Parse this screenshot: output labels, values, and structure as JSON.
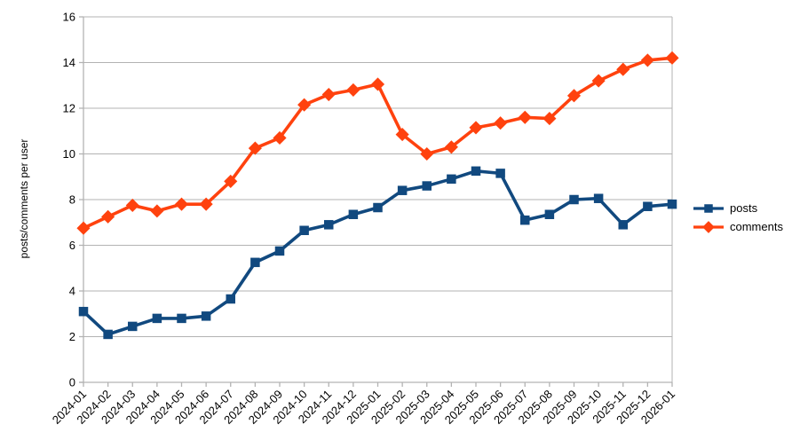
{
  "chart_data": {
    "type": "line",
    "title": "",
    "xlabel": "",
    "ylabel": "posts/comments per user",
    "ylim": [
      0,
      16
    ],
    "ytick_step": 2,
    "grid": "horizontal",
    "legend_position": "right",
    "categories": [
      "2024-01",
      "2024-02",
      "2024-03",
      "2024-04",
      "2024-05",
      "2024-06",
      "2024-07",
      "2024-08",
      "2024-09",
      "2024-10",
      "2024-11",
      "2024-12",
      "2025-01",
      "2025-02",
      "2025-03",
      "2025-04",
      "2025-05",
      "2025-06",
      "2025-07",
      "2025-08",
      "2025-09",
      "2025-10",
      "2025-11",
      "2025-12",
      "2026-01"
    ],
    "series": [
      {
        "name": "posts",
        "color": "#11497f",
        "marker": "square",
        "values": [
          3.1,
          2.1,
          2.45,
          2.8,
          2.8,
          2.9,
          3.65,
          5.25,
          5.75,
          6.65,
          6.9,
          7.35,
          7.65,
          8.4,
          8.6,
          8.9,
          9.25,
          9.15,
          7.1,
          7.35,
          8.0,
          8.05,
          6.9,
          7.7,
          7.8
        ]
      },
      {
        "name": "comments",
        "color": "#ff420e",
        "marker": "diamond",
        "values": [
          6.75,
          7.25,
          7.75,
          7.5,
          7.8,
          7.8,
          8.8,
          10.25,
          10.7,
          12.15,
          12.6,
          12.8,
          13.05,
          10.85,
          10.0,
          10.3,
          11.15,
          11.35,
          11.6,
          11.55,
          12.55,
          13.2,
          13.7,
          14.1,
          14.2
        ]
      }
    ],
    "colors": {
      "grid": "#b3b3b3",
      "axis": "#b3b3b3",
      "tick_text": "#000000"
    }
  }
}
